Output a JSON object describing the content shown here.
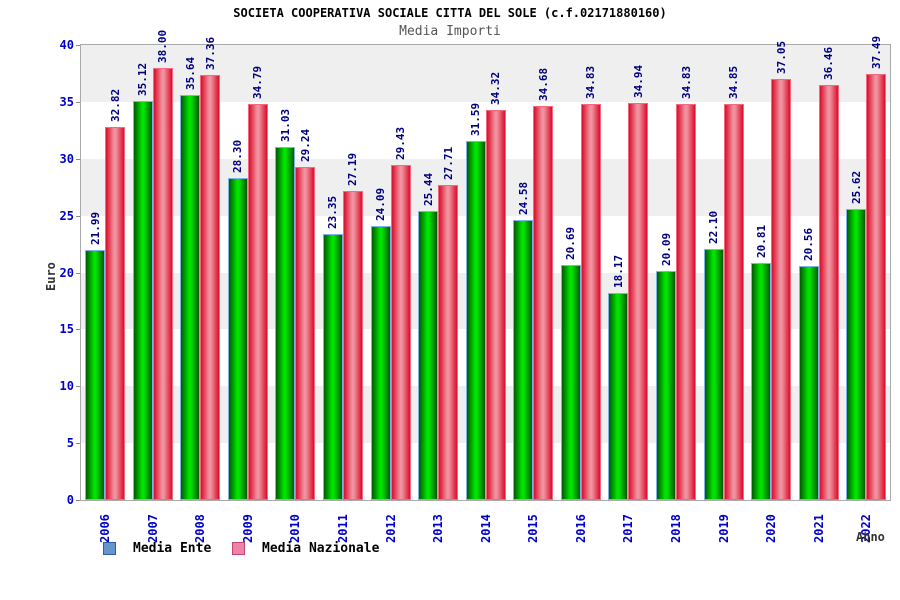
{
  "title": "SOCIETA COOPERATIVA SOCIALE CITTA DEL SOLE (c.f.02171880160)",
  "subtitle": "Media Importi",
  "chart_data": {
    "type": "bar",
    "categories": [
      "2006",
      "2007",
      "2008",
      "2009",
      "2010",
      "2011",
      "2012",
      "2013",
      "2014",
      "2015",
      "2016",
      "2017",
      "2018",
      "2019",
      "2020",
      "2021",
      "2022"
    ],
    "series": [
      {
        "name": "Media Ente",
        "legend_color": "#6495CD",
        "legend_border": "#2F5E9E",
        "values": [
          21.99,
          35.12,
          35.64,
          28.3,
          31.03,
          23.35,
          24.09,
          25.44,
          31.59,
          24.58,
          20.69,
          18.17,
          20.09,
          22.1,
          20.81,
          20.56,
          25.62
        ]
      },
      {
        "name": "Media Nazionale",
        "legend_color": "#EE82A8",
        "legend_border": "#C1466E",
        "values": [
          32.82,
          38.0,
          37.36,
          34.79,
          29.24,
          27.19,
          29.43,
          27.71,
          34.32,
          34.68,
          34.83,
          34.94,
          34.83,
          34.85,
          37.05,
          36.46,
          37.49
        ]
      }
    ],
    "xlabel": "Anno",
    "ylabel": "Euro",
    "ylim": [
      0,
      40
    ],
    "ytick_step": 5,
    "value_label_format": "2-decimals",
    "legend_position": "bottom-left",
    "grid": "horizontal-gray-bands"
  },
  "colors": {
    "tick_label": "#0000CC",
    "value_label": "#000080",
    "band_gray": "#EFEFEF",
    "band_white": "#FFFFFF",
    "frame_border": "#AAAAAA",
    "bar_green_edge": "#015B01",
    "bar_green_mid": "#00E400",
    "bar_green_border": "#7FB2E5",
    "bar_red_edge": "#DA0E2B",
    "bar_red_mid": "#F0929F",
    "bar_red_border": "#F4697F"
  }
}
